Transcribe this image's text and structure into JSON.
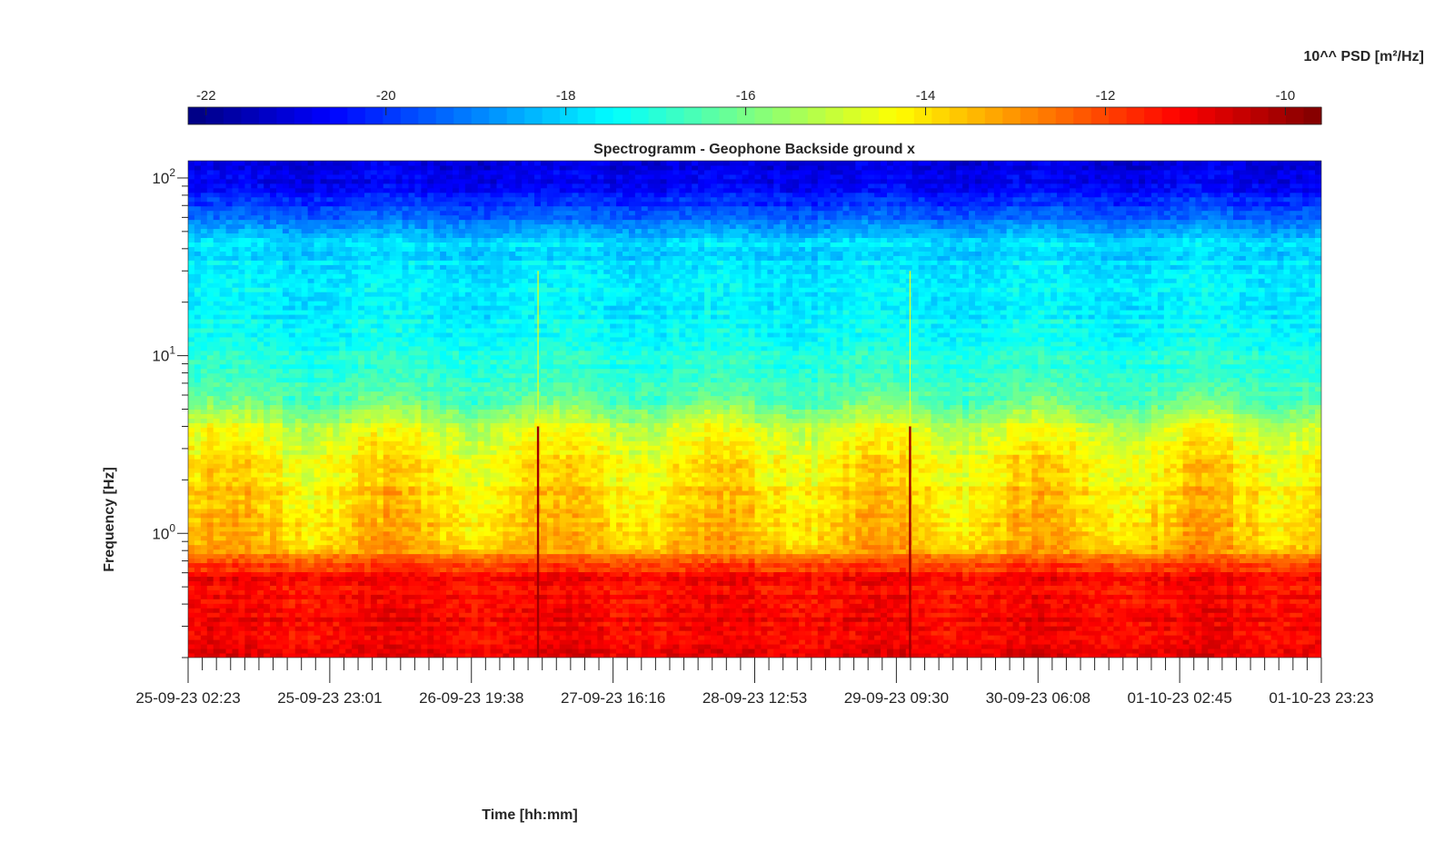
{
  "chart_data": {
    "type": "heatmap",
    "title": "Spectrogramm - Geophone Backside ground x",
    "xlabel": "Time [hh:mm]",
    "ylabel": "Frequency [Hz]",
    "x_ticks": [
      "25-09-23 02:23",
      "25-09-23 23:01",
      "26-09-23 19:38",
      "27-09-23 16:16",
      "28-09-23 12:53",
      "29-09-23 09:30",
      "30-09-23 06:08",
      "01-10-23 02:45",
      "01-10-23 23:23"
    ],
    "y_scale": "log",
    "y_ticks": [
      {
        "base": "10",
        "exp": "0",
        "value": 1
      },
      {
        "base": "10",
        "exp": "1",
        "value": 10
      },
      {
        "base": "10",
        "exp": "2",
        "value": 100
      }
    ],
    "ylim": [
      0.2,
      125
    ],
    "colorbar": {
      "label": "10^^ PSD [m²/Hz]",
      "ticks": [
        "-22",
        "-20",
        "-18",
        "-16",
        "-14",
        "-12",
        "-10"
      ],
      "range": [
        -22.2,
        -9.6
      ],
      "colormap": "jet",
      "placement": "top"
    },
    "psd_profile_log10": [
      {
        "freq": 0.2,
        "value": -11.0
      },
      {
        "freq": 0.55,
        "value": -11.2
      },
      {
        "freq": 0.7,
        "value": -12.2
      },
      {
        "freq": 0.85,
        "value": -13.6
      },
      {
        "freq": 2.0,
        "value": -14.0
      },
      {
        "freq": 4.0,
        "value": -14.8
      },
      {
        "freq": 6.0,
        "value": -16.6
      },
      {
        "freq": 15.0,
        "value": -17.5
      },
      {
        "freq": 45.0,
        "value": -18.0
      },
      {
        "freq": 60.0,
        "value": -19.5
      },
      {
        "freq": 100.0,
        "value": -21.0
      },
      {
        "freq": 125.0,
        "value": -20.8
      }
    ],
    "events": [
      {
        "time": "27-09-23 05:20",
        "type": "broadband transient"
      },
      {
        "time": "29-09-23 11:30",
        "type": "broadband transient"
      }
    ]
  }
}
